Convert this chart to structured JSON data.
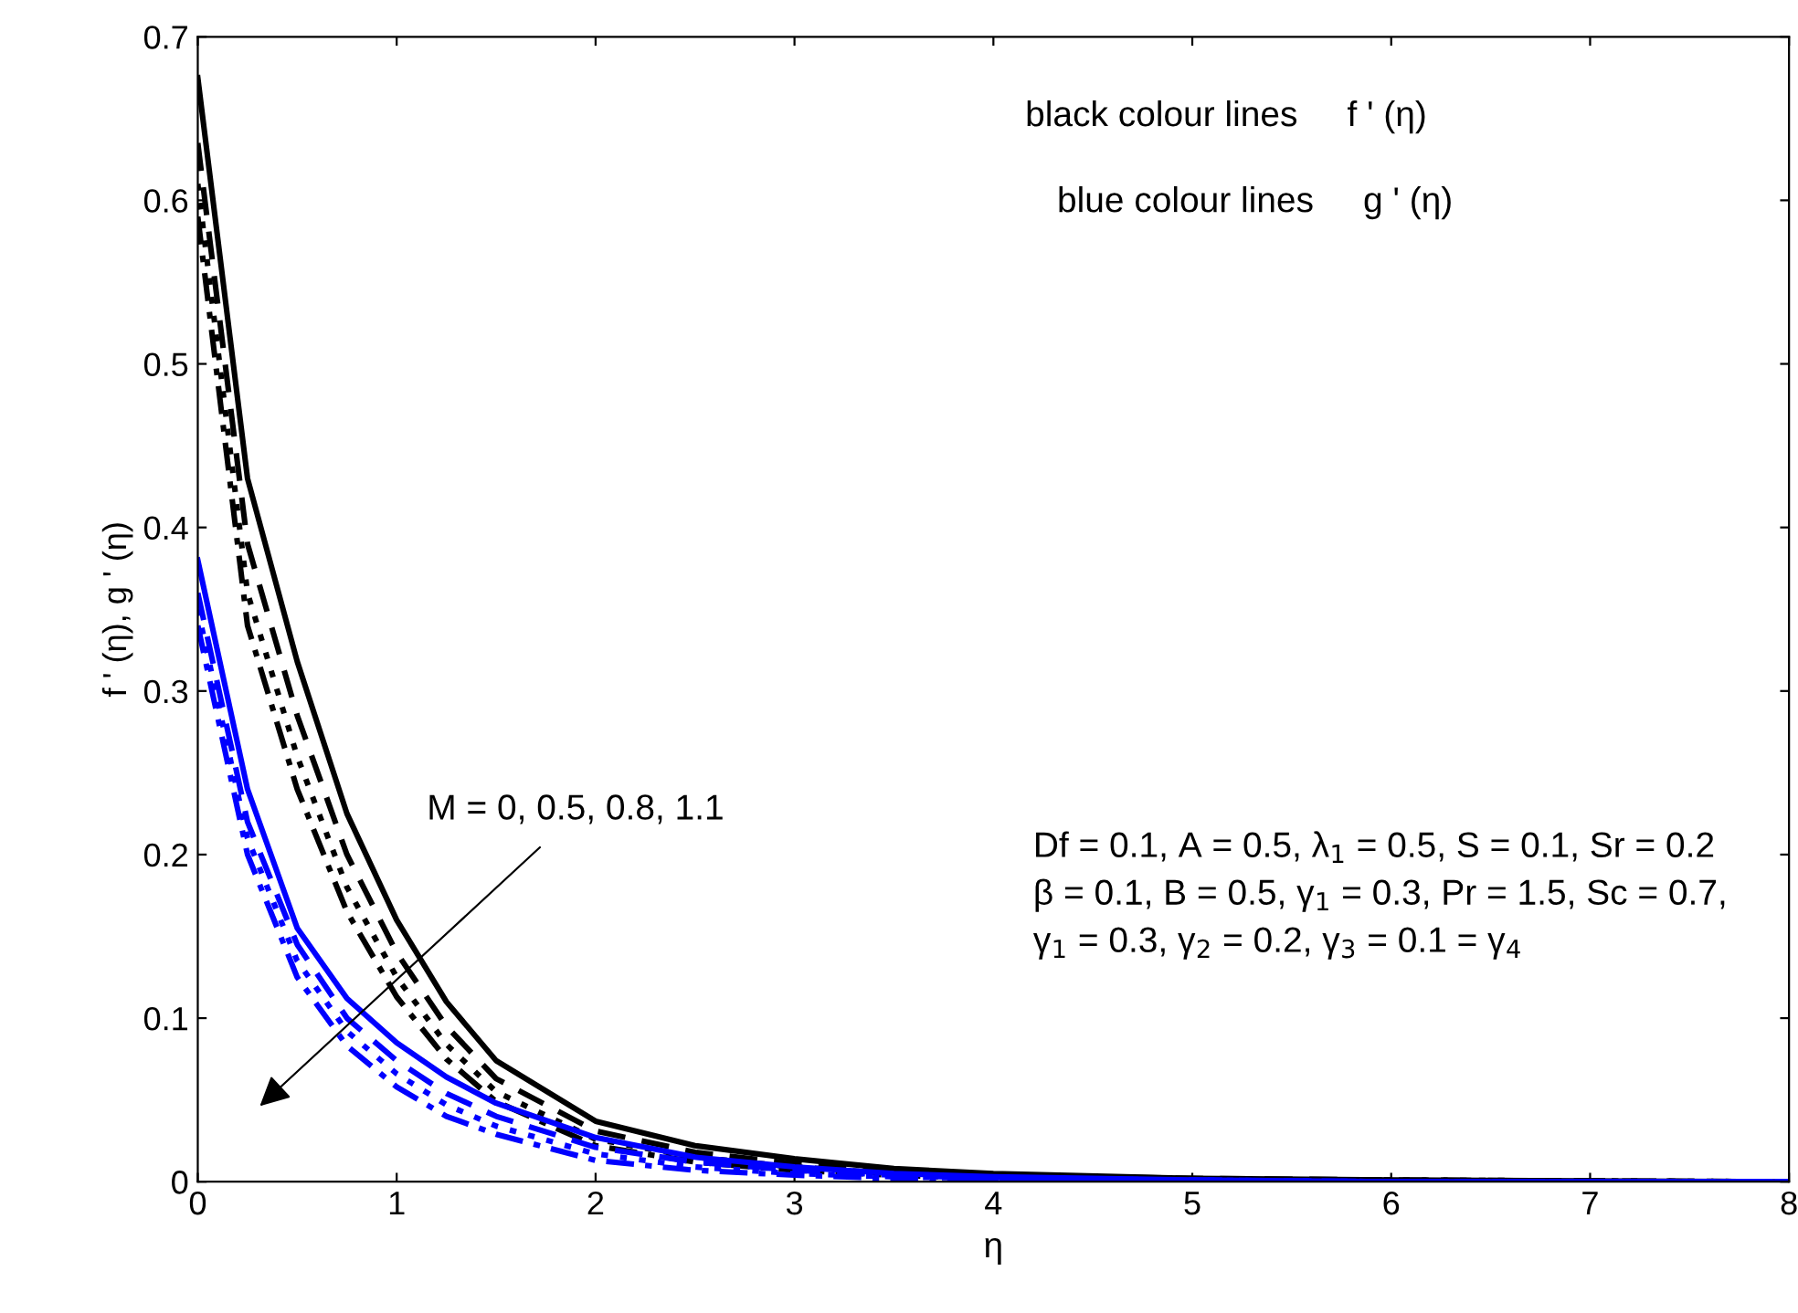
{
  "chart_data": {
    "type": "line",
    "xlabel": "η",
    "ylabel": "f ' (η), g ' (η)",
    "x": [
      0,
      0.25,
      0.5,
      0.75,
      1,
      1.25,
      1.5,
      2,
      2.5,
      3,
      3.5,
      4,
      5,
      6,
      8
    ],
    "xlim": [
      0,
      8
    ],
    "xticks": [
      0,
      1,
      2,
      3,
      4,
      5,
      6,
      7,
      8
    ],
    "ylim": [
      0,
      0.7
    ],
    "yticks": [
      0,
      0.1,
      0.2,
      0.3,
      0.4,
      0.5,
      0.6,
      0.7
    ],
    "grid": false,
    "legend": false,
    "marker": "none",
    "series": [
      {
        "color": "#000000",
        "line_style": "solid",
        "values": [
          0.675,
          0.43,
          0.318,
          0.225,
          0.16,
          0.11,
          0.074,
          0.037,
          0.022,
          0.014,
          0.008,
          0.005,
          0.002,
          0.001,
          0
        ]
      },
      {
        "color": "#000000",
        "line_style": "dashed",
        "values": [
          0.635,
          0.39,
          0.285,
          0.2,
          0.14,
          0.095,
          0.063,
          0.031,
          0.018,
          0.011,
          0.006,
          0.004,
          0.002,
          0.001,
          0
        ]
      },
      {
        "color": "#000000",
        "line_style": "dotted",
        "values": [
          0.61,
          0.36,
          0.26,
          0.18,
          0.125,
          0.084,
          0.055,
          0.026,
          0.015,
          0.009,
          0.005,
          0.003,
          0.001,
          0.001,
          0
        ]
      },
      {
        "color": "#000000",
        "line_style": "dashdot",
        "values": [
          0.59,
          0.34,
          0.24,
          0.165,
          0.113,
          0.075,
          0.049,
          0.022,
          0.012,
          0.007,
          0.004,
          0.002,
          0.001,
          0,
          0
        ]
      },
      {
        "color": "#0000ff",
        "line_style": "solid",
        "values": [
          0.38,
          0.24,
          0.155,
          0.112,
          0.085,
          0.064,
          0.048,
          0.027,
          0.015,
          0.009,
          0.005,
          0.003,
          0.001,
          0,
          0
        ]
      },
      {
        "color": "#0000ff",
        "line_style": "dashed",
        "values": [
          0.36,
          0.22,
          0.145,
          0.1,
          0.074,
          0.054,
          0.04,
          0.021,
          0.012,
          0.007,
          0.004,
          0.002,
          0.001,
          0,
          0
        ]
      },
      {
        "color": "#0000ff",
        "line_style": "dotted",
        "values": [
          0.35,
          0.21,
          0.135,
          0.092,
          0.066,
          0.047,
          0.034,
          0.017,
          0.009,
          0.005,
          0.003,
          0.002,
          0.001,
          0,
          0
        ]
      },
      {
        "color": "#0000ff",
        "line_style": "dashdot",
        "values": [
          0.34,
          0.2,
          0.125,
          0.083,
          0.058,
          0.04,
          0.029,
          0.013,
          0.007,
          0.004,
          0.002,
          0.001,
          0,
          0,
          0
        ]
      }
    ],
    "annotations": [
      "M = 0, 0.5, 0.8, 1.1",
      "black colour lines     f ' (η)",
      "blue colour lines     g ' (η)",
      "Df = 0.1, A = 0.5, λ$_{1}$ = 0.5, S = 0.1, Sr = 0.2\nβ = 0.1, B = 0.5, γ$_{1}$ = 0.3, Pr = 1.5, Sc = 0.7,\nγ$_{1}$ = 0.3, γ$_{2}$ = 0.2, γ$_{3}$ = 0.1 = γ$_{4}$"
    ]
  }
}
